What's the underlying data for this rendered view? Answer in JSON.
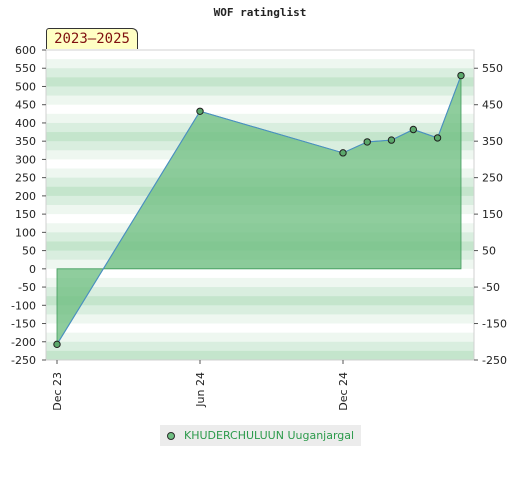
{
  "title": "WOF ratinglist",
  "period": "2023–2025",
  "legend": {
    "label": "KHUDERCHULUUN Uuganjargal"
  },
  "colors": {
    "fill": "#6fbf82",
    "line": "#4a8fc4",
    "marker": "#5ba86b",
    "legend_text": "#2c9a4b",
    "badge_bg": "#ffffc4",
    "badge_text": "#801010"
  },
  "chart_data": {
    "type": "area",
    "title": "WOF ratinglist",
    "xlabel": "",
    "ylabel": "",
    "x_ticks": [
      "Dec 23",
      "Jun 24",
      "Dec 24"
    ],
    "y_left_ticks": [
      600,
      550,
      500,
      450,
      400,
      350,
      300,
      250,
      200,
      150,
      100,
      50,
      0,
      -50,
      -100,
      -150,
      -200,
      -250
    ],
    "y_right_ticks": [
      550,
      450,
      350,
      250,
      150,
      50,
      -50,
      -150,
      -250
    ],
    "ylim": [
      -250,
      600
    ],
    "grid": true,
    "legend_position": "bottom-center",
    "series": [
      {
        "name": "KHUDERCHULUUN Uuganjargal",
        "x": [
          "2023-12-01",
          "2024-06-01",
          "2024-12-01",
          "2025-01-01",
          "2025-02-01",
          "2025-03-01",
          "2025-04-01",
          "2025-05-01"
        ],
        "values": [
          -207,
          432,
          318,
          348,
          353,
          382,
          359,
          530
        ]
      }
    ]
  }
}
